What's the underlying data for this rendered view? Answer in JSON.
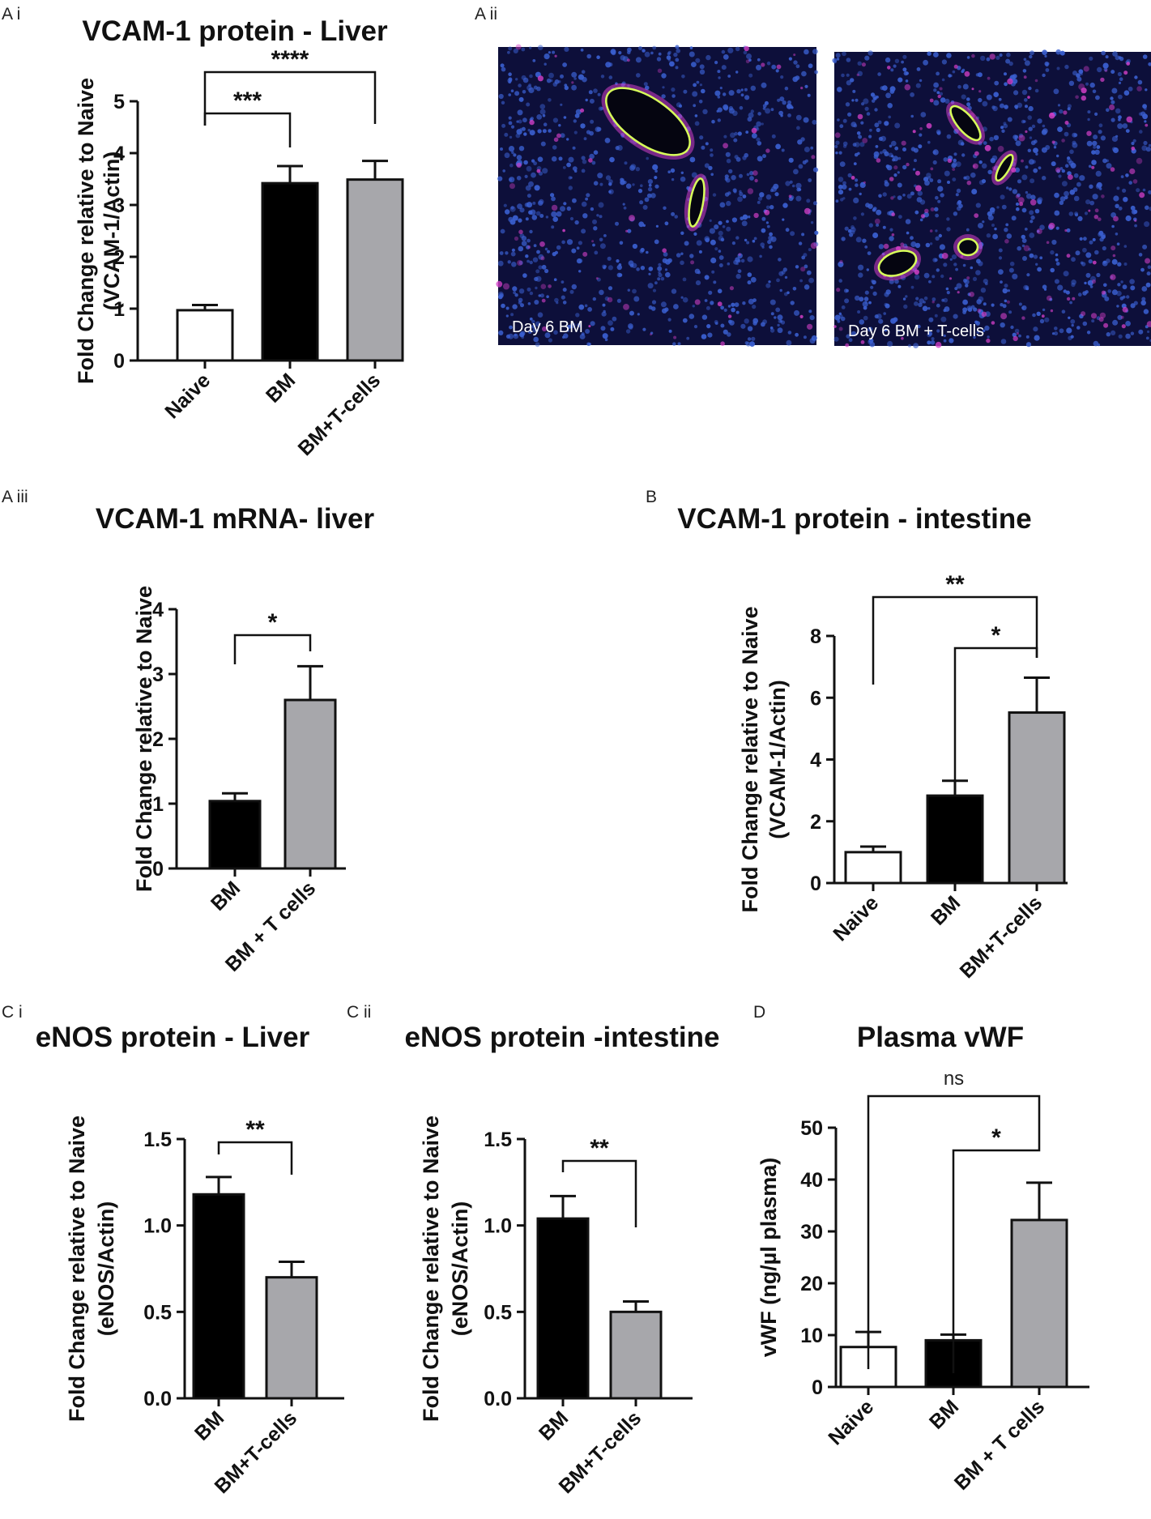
{
  "colors": {
    "naive": "#ffffff",
    "bm": "#000000",
    "bm_t": "#a7a7ab",
    "micro_bg": "#0d0f3a",
    "nuclei": "#3a5fd0",
    "vcam_stain": "#d43fc8",
    "vessel_stain": "#d8ff5a"
  },
  "micrographs": {
    "panel_label": "A ii",
    "images": [
      {
        "caption": "Day 6 BM"
      },
      {
        "caption": "Day 6 BM + T-cells"
      }
    ]
  },
  "chart_data": [
    {
      "id": "Ai",
      "panel_label": "A i",
      "type": "bar",
      "title": "VCAM-1 protein - Liver",
      "ylabel": [
        "Fold Change relative to Naive",
        "(VCAM-1/Actin)"
      ],
      "categories": [
        "Naive",
        "BM",
        "BM+T-cells"
      ],
      "values": [
        0.97,
        3.42,
        3.49
      ],
      "errors": [
        0.1,
        0.33,
        0.36
      ],
      "colors": [
        "#ffffff",
        "#000000",
        "#a7a7ab"
      ],
      "ylim": [
        0,
        5
      ],
      "yticks": [
        "0",
        "1",
        "2",
        "3",
        "4",
        "5"
      ],
      "significance": [
        {
          "from": 0,
          "to": 1,
          "label": "***"
        },
        {
          "from": 0,
          "to": 2,
          "label": "****"
        }
      ]
    },
    {
      "id": "Aiii",
      "panel_label": "A iii",
      "type": "bar",
      "title": "VCAM-1 mRNA- liver",
      "ylabel": [
        "Fold Change relative to Naive"
      ],
      "categories": [
        "BM",
        "BM + T cells"
      ],
      "values": [
        1.04,
        2.6
      ],
      "errors": [
        0.12,
        0.52
      ],
      "colors": [
        "#000000",
        "#a7a7ab"
      ],
      "ylim": [
        0,
        4
      ],
      "yticks": [
        "0",
        "1",
        "2",
        "3",
        "4"
      ],
      "significance": [
        {
          "from": 0,
          "to": 1,
          "label": "*"
        }
      ]
    },
    {
      "id": "B",
      "panel_label": "B",
      "type": "bar",
      "title": "VCAM-1 protein - intestine",
      "ylabel": [
        "Fold Change relative to Naive",
        "(VCAM-1/Actin)"
      ],
      "categories": [
        "Naive",
        "BM",
        "BM+T-cells"
      ],
      "values": [
        1.0,
        2.83,
        5.52
      ],
      "errors": [
        0.18,
        0.48,
        1.13
      ],
      "colors": [
        "#ffffff",
        "#000000",
        "#a7a7ab"
      ],
      "ylim": [
        0,
        8
      ],
      "yticks": [
        "0",
        "2",
        "4",
        "6",
        "8"
      ],
      "significance": [
        {
          "from": 0,
          "to": 2,
          "label": "**"
        },
        {
          "from": 1,
          "to": 2,
          "label": "*"
        }
      ]
    },
    {
      "id": "Ci",
      "panel_label": "C i",
      "type": "bar",
      "title": "eNOS protein - Liver",
      "ylabel": [
        "Fold Change relative to Naive",
        "(eNOS/Actin)"
      ],
      "categories": [
        "BM",
        "BM+T-cells"
      ],
      "values": [
        1.18,
        0.7
      ],
      "errors": [
        0.1,
        0.09
      ],
      "colors": [
        "#000000",
        "#a7a7ab"
      ],
      "ylim": [
        0,
        1.5
      ],
      "yticks": [
        "0.0",
        "0.5",
        "1.0",
        "1.5"
      ],
      "significance": [
        {
          "from": 0,
          "to": 1,
          "label": "**"
        }
      ]
    },
    {
      "id": "Cii",
      "panel_label": "C ii",
      "type": "bar",
      "title": "eNOS protein -intestine",
      "ylabel": [
        "Fold Change relative to Naive",
        "(eNOS/Actin)"
      ],
      "categories": [
        "BM",
        "BM+T-cells"
      ],
      "values": [
        1.04,
        0.5
      ],
      "errors": [
        0.13,
        0.06
      ],
      "colors": [
        "#000000",
        "#a7a7ab"
      ],
      "ylim": [
        0,
        1.5
      ],
      "yticks": [
        "0.0",
        "0.5",
        "1.0",
        "1.5"
      ],
      "significance": [
        {
          "from": 0,
          "to": 1,
          "label": "**"
        }
      ]
    },
    {
      "id": "D",
      "panel_label": "D",
      "type": "bar",
      "title": "Plasma vWF",
      "ylabel": [
        "vWF (ng/µl plasma)"
      ],
      "categories": [
        "Naive",
        "BM",
        "BM + T cells"
      ],
      "values": [
        7.7,
        9.0,
        32.2
      ],
      "errors": [
        2.9,
        1.1,
        7.2
      ],
      "colors": [
        "#ffffff",
        "#000000",
        "#a7a7ab"
      ],
      "ylim": [
        0,
        50
      ],
      "yticks": [
        "0",
        "10",
        "20",
        "30",
        "40",
        "50"
      ],
      "significance": [
        {
          "from": 0,
          "to": 2,
          "label": "ns"
        },
        {
          "from": 1,
          "to": 2,
          "label": "*"
        }
      ]
    }
  ]
}
